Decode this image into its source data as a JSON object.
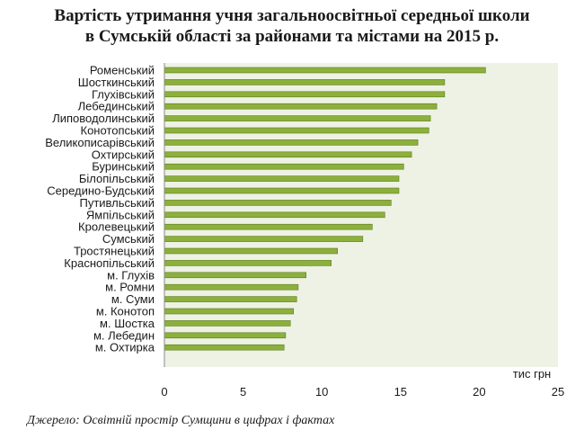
{
  "chart_data": {
    "type": "bar",
    "orientation": "horizontal",
    "title_line1": "Вартість утримання учня загальноосвітньої середньої школи",
    "title_line2": "в Сумській області за районами та містами на 2015 р.",
    "xlabel": "тис грн",
    "ylabel": "",
    "xlim": [
      0,
      25
    ],
    "xticks": [
      "0",
      "5",
      "10",
      "15",
      "20",
      "25"
    ],
    "categories": [
      "Роменський",
      "Шосткинський",
      "Глухівський",
      "Лебединський",
      "Липоводолинський",
      "Конотопський",
      "Великописарівський",
      "Охтирський",
      "Буринський",
      "Білопільський",
      "Середино-Будський",
      "Путивльський",
      "Ямпільський",
      "Кролевецький",
      "Сумський",
      "Тростянецький",
      "Краснопільський",
      "м. Глухів",
      "м. Ромни",
      "м. Суми",
      "м. Конотоп",
      "м. Шостка",
      "м. Лебедин",
      "м. Охтирка"
    ],
    "values": [
      20.4,
      17.8,
      17.8,
      17.3,
      16.9,
      16.8,
      16.1,
      15.7,
      15.2,
      14.9,
      14.9,
      14.4,
      14.0,
      13.2,
      12.6,
      11.0,
      10.6,
      9.0,
      8.5,
      8.4,
      8.2,
      8.0,
      7.7,
      7.6
    ],
    "grid": false,
    "legend": "none",
    "colors": {
      "bar": "#8daf3c",
      "bar_edge": "#5c7d22",
      "plot_background": "#eef2e5",
      "axis": "#888888"
    }
  },
  "source": "Джерело: Освітній простір Сумщини в цифрах і фактах"
}
